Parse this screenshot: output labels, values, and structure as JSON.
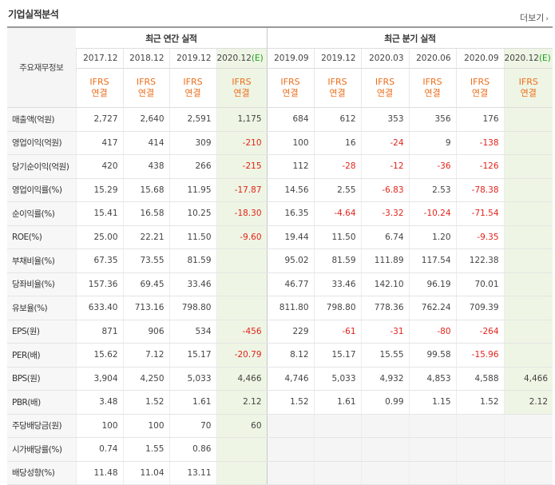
{
  "header": {
    "title": "기업실적분석",
    "more_label": "더보기"
  },
  "table": {
    "row_header": "주요재무정보",
    "annual_group": "최근 연간 실적",
    "quarter_group": "최근 분기 실적",
    "annual_periods": [
      {
        "label": "2017.12",
        "est": ""
      },
      {
        "label": "2018.12",
        "est": ""
      },
      {
        "label": "2019.12",
        "est": ""
      },
      {
        "label": "2020.12",
        "est": "(E)"
      }
    ],
    "quarter_periods": [
      {
        "label": "2019.09",
        "est": ""
      },
      {
        "label": "2019.12",
        "est": ""
      },
      {
        "label": "2020.03",
        "est": ""
      },
      {
        "label": "2020.06",
        "est": ""
      },
      {
        "label": "2020.09",
        "est": ""
      },
      {
        "label": "2020.12",
        "est": "(E)"
      }
    ],
    "basis_top": "IFRS",
    "basis_bottom": "연결",
    "rows": [
      {
        "label": "매출액(억원)",
        "values": [
          "2,727",
          "2,640",
          "2,591",
          "1,175",
          "684",
          "612",
          "353",
          "356",
          "176",
          ""
        ]
      },
      {
        "label": "영업이익(억원)",
        "values": [
          "417",
          "414",
          "309",
          "-210",
          "100",
          "16",
          "-24",
          "9",
          "-138",
          ""
        ]
      },
      {
        "label": "당기순이익(억원)",
        "values": [
          "420",
          "438",
          "266",
          "-215",
          "112",
          "-28",
          "-12",
          "-36",
          "-126",
          ""
        ]
      },
      {
        "label": "영업이익률(%)",
        "values": [
          "15.29",
          "15.68",
          "11.95",
          "-17.87",
          "14.56",
          "2.55",
          "-6.83",
          "2.53",
          "-78.38",
          ""
        ]
      },
      {
        "label": "순이익률(%)",
        "values": [
          "15.41",
          "16.58",
          "10.25",
          "-18.30",
          "16.35",
          "-4.64",
          "-3.32",
          "-10.24",
          "-71.54",
          ""
        ]
      },
      {
        "label": "ROE(%)",
        "values": [
          "25.00",
          "22.21",
          "11.50",
          "-9.60",
          "19.44",
          "11.50",
          "6.74",
          "1.20",
          "-9.35",
          ""
        ]
      },
      {
        "label": "부채비율(%)",
        "values": [
          "67.35",
          "73.55",
          "81.59",
          "",
          "95.02",
          "81.59",
          "111.89",
          "117.54",
          "122.38",
          ""
        ]
      },
      {
        "label": "당좌비율(%)",
        "values": [
          "157.36",
          "69.45",
          "33.46",
          "",
          "46.77",
          "33.46",
          "142.10",
          "96.19",
          "70.01",
          ""
        ]
      },
      {
        "label": "유보율(%)",
        "values": [
          "633.40",
          "713.16",
          "798.80",
          "",
          "811.80",
          "798.80",
          "778.36",
          "762.24",
          "709.39",
          ""
        ]
      },
      {
        "label": "EPS(원)",
        "values": [
          "871",
          "906",
          "534",
          "-456",
          "229",
          "-61",
          "-31",
          "-80",
          "-264",
          ""
        ]
      },
      {
        "label": "PER(배)",
        "values": [
          "15.62",
          "7.12",
          "15.17",
          "-20.79",
          "8.12",
          "15.17",
          "15.55",
          "99.58",
          "-15.96",
          ""
        ]
      },
      {
        "label": "BPS(원)",
        "values": [
          "3,904",
          "4,250",
          "5,033",
          "4,466",
          "4,746",
          "5,033",
          "4,932",
          "4,853",
          "4,588",
          "4,466"
        ]
      },
      {
        "label": "PBR(배)",
        "values": [
          "3.48",
          "1.52",
          "1.61",
          "2.12",
          "1.52",
          "1.61",
          "0.99",
          "1.15",
          "1.52",
          "2.12"
        ]
      },
      {
        "label": "주당배당금(원)",
        "values": [
          "100",
          "100",
          "70",
          "60",
          "",
          "",
          "",
          "",
          "",
          ""
        ]
      },
      {
        "label": "시가배당률(%)",
        "values": [
          "0.74",
          "1.55",
          "0.86",
          "",
          "",
          "",
          "",
          "",
          "",
          ""
        ]
      },
      {
        "label": "배당성향(%)",
        "values": [
          "11.48",
          "11.04",
          "13.11",
          "",
          "",
          "",
          "",
          "",
          "",
          ""
        ]
      }
    ],
    "group_starts": [
      0,
      3,
      6,
      9,
      13
    ]
  },
  "colors": {
    "negative": "#e2231a",
    "basis": "#ed6d1b",
    "estimate_mark": "#17a11c",
    "estimate_bg": "#eef5e4"
  }
}
